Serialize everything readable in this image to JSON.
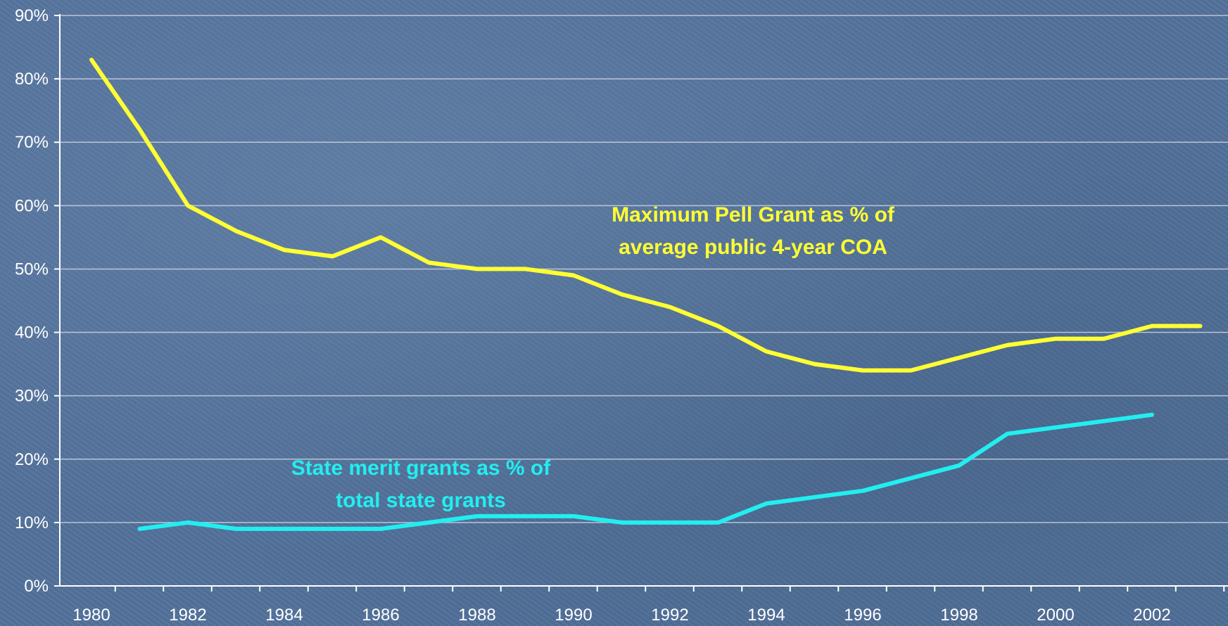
{
  "chart_data": {
    "type": "line",
    "title": "",
    "xlabel": "",
    "ylabel": "",
    "x": [
      1980,
      1981,
      1982,
      1983,
      1984,
      1985,
      1986,
      1987,
      1988,
      1989,
      1990,
      1991,
      1992,
      1993,
      1994,
      1995,
      1996,
      1997,
      1998,
      1999,
      2000,
      2001,
      2002,
      2003
    ],
    "x_tick_labels": [
      "1980",
      "1982",
      "1984",
      "1986",
      "1988",
      "1990",
      "1992",
      "1994",
      "1996",
      "1998",
      "2000",
      "2002"
    ],
    "y_tick_labels": [
      "0%",
      "10%",
      "20%",
      "30%",
      "40%",
      "50%",
      "60%",
      "70%",
      "80%",
      "90%"
    ],
    "ylim": [
      0,
      90
    ],
    "grid": "horizontal",
    "legend": "none",
    "series": [
      {
        "color": "#ffff33",
        "values": [
          83,
          72,
          60,
          56,
          53,
          52,
          55,
          51,
          50,
          50,
          49,
          46,
          44,
          41,
          37,
          35,
          34,
          34,
          36,
          38,
          39,
          39,
          41,
          41
        ]
      },
      {
        "color": "#22eef0",
        "values": [
          null,
          9,
          10,
          9,
          9,
          9,
          9,
          10,
          11,
          11,
          11,
          10,
          10,
          10,
          13,
          14,
          15,
          17,
          19,
          24,
          25,
          26,
          27,
          null
        ]
      }
    ],
    "annotations": [
      {
        "lines": [
          "Maximum Pell Grant as % of",
          "average public 4-year COA"
        ],
        "color": "#ffff33"
      },
      {
        "lines": [
          "State merit grants as % of",
          "total state grants"
        ],
        "color": "#22eef0"
      }
    ]
  }
}
